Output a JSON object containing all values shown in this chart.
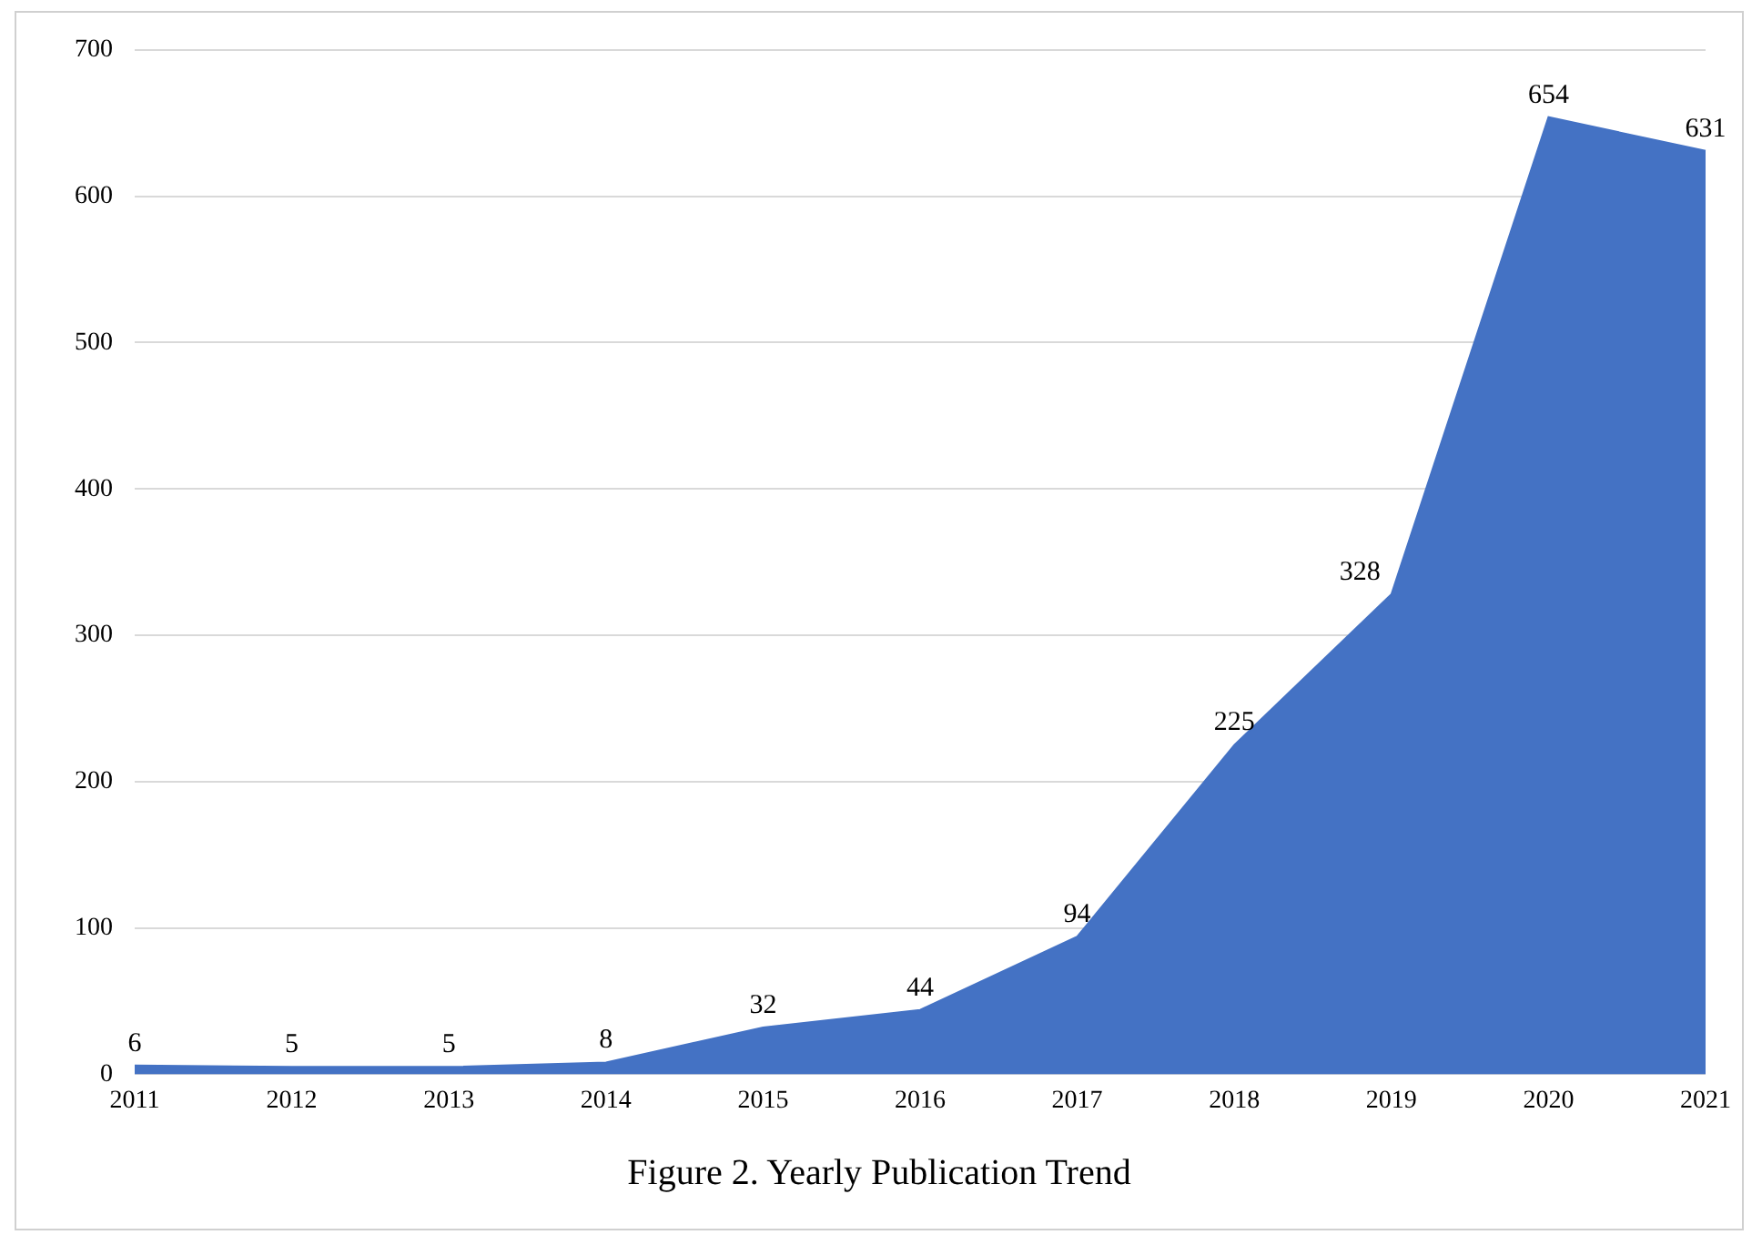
{
  "chart_data": {
    "type": "area",
    "title": "Figure 2. Yearly Publication Trend",
    "categories": [
      "2011",
      "2012",
      "2013",
      "2014",
      "2015",
      "2016",
      "2017",
      "2018",
      "2019",
      "2020",
      "2021"
    ],
    "values": [
      6,
      5,
      5,
      8,
      32,
      44,
      94,
      225,
      328,
      654,
      631
    ],
    "color": "#4472c4",
    "ylim": [
      0,
      700
    ],
    "yticks": [
      0,
      100,
      200,
      300,
      400,
      500,
      600,
      700
    ],
    "grid": "y",
    "legend": false,
    "data_labels": true
  }
}
